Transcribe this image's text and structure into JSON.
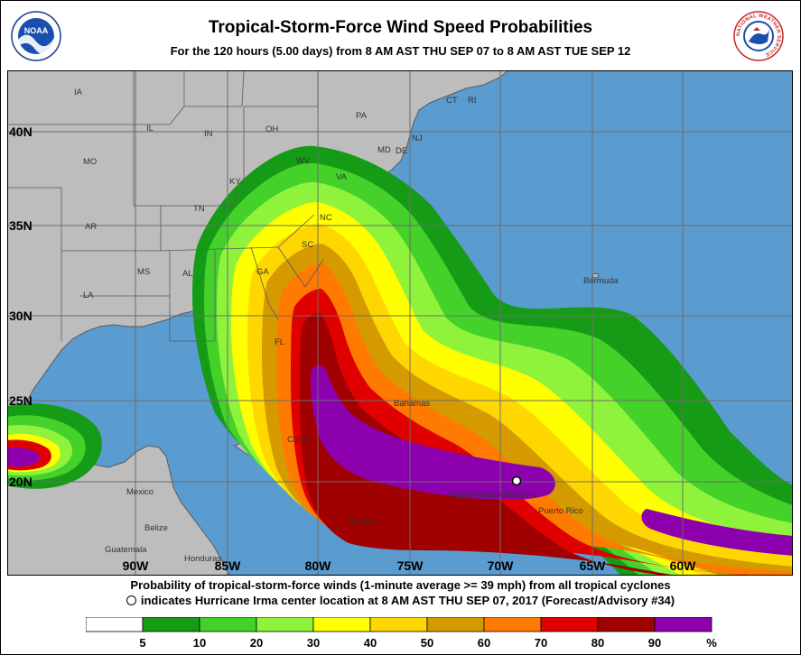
{
  "header": {
    "title": "Tropical-Storm-Force Wind Speed Probabilities",
    "subtitle": "For the 120 hours (5.00 days) from 8 AM AST THU SEP 07 to 8 AM AST TUE SEP 12"
  },
  "logos": {
    "noaa_text": "NOAA",
    "nws_ring_text": "NATIONAL WEATHER SERVICE"
  },
  "map": {
    "lat_labels": [
      "40N",
      "35N",
      "30N",
      "25N",
      "20N"
    ],
    "lon_labels": [
      "90W",
      "85W",
      "80W",
      "75W",
      "70W",
      "65W",
      "60W"
    ],
    "place_labels": [
      "IA",
      "IL",
      "IN",
      "OH",
      "PA",
      "CT",
      "RI",
      "NJ",
      "MD",
      "DE",
      "WV",
      "VA",
      "MO",
      "KY",
      "TN",
      "NC",
      "AR",
      "SC",
      "MS",
      "AL",
      "GA",
      "LA",
      "FL",
      "Bermuda",
      "Bahamas",
      "Cuba",
      "Mexico",
      "Belize",
      "Guatemala",
      "Honduras",
      "Jamaica",
      "Haiti",
      "Dominican Republic",
      "Puerto Rico"
    ],
    "colors": {
      "ocean": "#5a9bd0",
      "land": "#bdbdbd",
      "borders": "#5a5a5a",
      "grid": "#6c6c6c"
    },
    "storm_marker": {
      "symbol": "hurricane-center-circle",
      "lat": 20.4,
      "lon": -68.8
    }
  },
  "caption": {
    "line1": "Probability of tropical-storm-force winds (1-minute average >= 39 mph) from all tropical cyclones",
    "line2": "indicates Hurricane Irma center location at 8 AM AST THU SEP 07, 2017 (Forecast/Advisory #34)"
  },
  "legend": {
    "ticks": [
      "5",
      "10",
      "20",
      "30",
      "40",
      "50",
      "60",
      "70",
      "80",
      "90",
      "%"
    ],
    "colors": [
      "#ffffff",
      "#169b16",
      "#44d12a",
      "#8ff33c",
      "#ffff00",
      "#ffd700",
      "#d49a00",
      "#ff7a00",
      "#e00000",
      "#a00000",
      "#8d00ad"
    ]
  }
}
